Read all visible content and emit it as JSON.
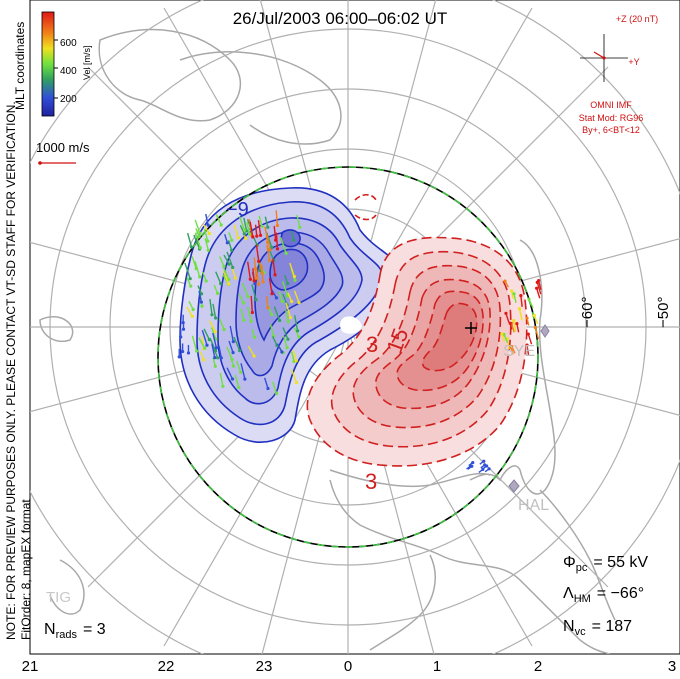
{
  "title": "26/Jul/2003 06:00–06:02 UT",
  "colorbar": {
    "label": "Vel [m/s]",
    "ticks": [
      "600",
      "400",
      "200"
    ],
    "colors": [
      "#e01818",
      "#f08018",
      "#f0e020",
      "#70e040",
      "#30a060",
      "#3050d8",
      "#2020a0"
    ]
  },
  "coord_label": "MLT coordinates",
  "ref_vector": "1000 m/s",
  "imf": {
    "z_label": "+Z (20 nT)",
    "y_label": "+Y",
    "source": "OMNI IMF",
    "model_line1": "Stat Mod: RG96",
    "model_line2": "By+, 6<BT<12"
  },
  "watermark": "NOTE: FOR PREVIEW PURPOSES ONLY. PLEASE CONTACT VT-SD STAFF FOR VERIFICATION.",
  "fit": "FitOrder: 8, mapEX format",
  "stats": {
    "phi_sym": "Φ",
    "phi_sub": "pc",
    "phi_val": "= 55 kV",
    "lambda_sym": "Λ",
    "lambda_sub": "HM",
    "lambda_val": "= −66°",
    "nvc_sym": "N",
    "nvc_sub": "vc",
    "nvc_val": "= 187",
    "nrads_sym": "N",
    "nrads_sub": "rads",
    "nrads_val": "= 3"
  },
  "mlt_labels": [
    "21",
    "22",
    "23",
    "0",
    "1",
    "2",
    "3"
  ],
  "lat_labels": [
    "−60°",
    "−50°"
  ],
  "contour_labels": [
    "−9",
    "3",
    "15",
    "3"
  ],
  "stations": [
    "SYE",
    "HAL",
    "TIG"
  ],
  "colors": {
    "negative_cell": "#2030c0",
    "positive_cell": "#d02020",
    "grid": "#b0b0b0",
    "coast": "#a8a8a8",
    "hmb": "#40c040"
  }
}
